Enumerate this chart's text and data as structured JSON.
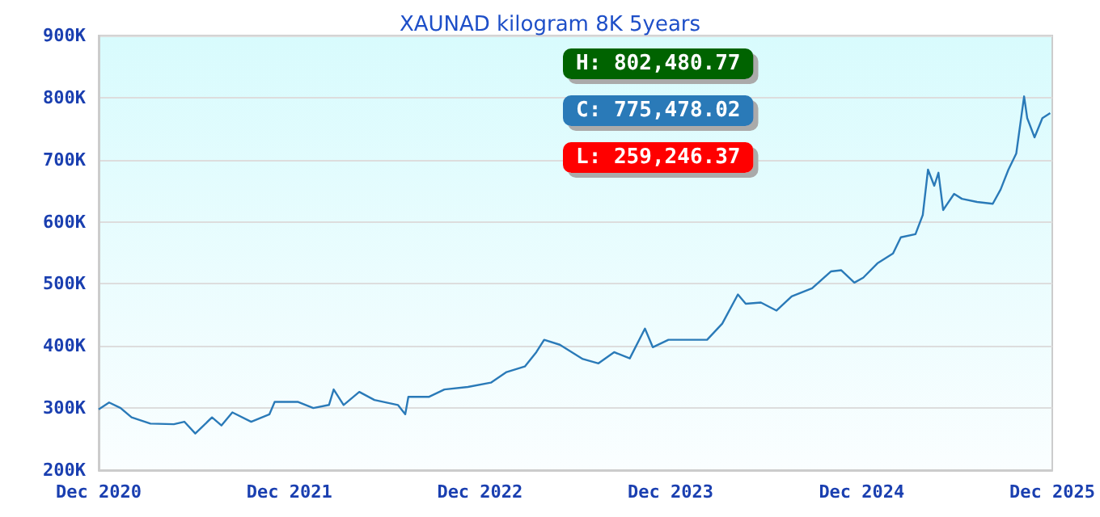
{
  "chart_data": {
    "type": "line",
    "title": "XAUNAD kilogram 8K 5years",
    "x": [
      "2020-12-01",
      "2020-12-21",
      "2021-01-12",
      "2021-02-02",
      "2021-03-10",
      "2021-04-24",
      "2021-05-14",
      "2021-06-04",
      "2021-07-06",
      "2021-07-24",
      "2021-08-14",
      "2021-09-19",
      "2021-10-24",
      "2021-11-03",
      "2021-12-17",
      "2022-01-16",
      "2022-02-15",
      "2022-02-24",
      "2022-03-15",
      "2022-04-14",
      "2022-05-13",
      "2022-06-27",
      "2022-07-11",
      "2022-07-17",
      "2022-08-25",
      "2022-09-24",
      "2022-11-08",
      "2022-12-22",
      "2023-01-21",
      "2023-02-25",
      "2023-03-19",
      "2023-04-03",
      "2023-05-03",
      "2023-06-16",
      "2023-07-16",
      "2023-08-15",
      "2023-09-14",
      "2023-10-13",
      "2023-10-28",
      "2023-11-27",
      "2024-01-10",
      "2024-02-09",
      "2024-03-09",
      "2024-04-08",
      "2024-04-23",
      "2024-05-22",
      "2024-06-21",
      "2024-07-20",
      "2024-08-28",
      "2024-10-03",
      "2024-10-23",
      "2024-11-17",
      "2024-12-04",
      "2024-12-31",
      "2025-01-30",
      "2025-02-14",
      "2025-03-14",
      "2025-03-28",
      "2025-04-07",
      "2025-04-19",
      "2025-04-27",
      "2025-05-06",
      "2025-05-27",
      "2025-06-11",
      "2025-07-10",
      "2025-08-09",
      "2025-08-24",
      "2025-09-08",
      "2025-09-23",
      "2025-10-08",
      "2025-10-14",
      "2025-10-28",
      "2025-11-12",
      "2025-11-27"
    ],
    "series": [
      {
        "color": "#2a7ab8",
        "values": [
          298000,
          309000,
          300000,
          285000,
          275000,
          274000,
          278000,
          259000,
          285000,
          272000,
          293000,
          278000,
          290000,
          310000,
          310000,
          300000,
          305000,
          330000,
          305000,
          326000,
          313000,
          305000,
          290000,
          318000,
          318000,
          330000,
          334000,
          341000,
          358000,
          367000,
          390000,
          410000,
          402000,
          379000,
          372000,
          390000,
          380000,
          428000,
          398000,
          410000,
          410000,
          410000,
          436000,
          483000,
          468000,
          470000,
          457000,
          480000,
          493000,
          520000,
          522000,
          502000,
          510000,
          533000,
          549000,
          575000,
          580000,
          611000,
          684000,
          658000,
          679000,
          619000,
          645000,
          637000,
          632000,
          629000,
          652000,
          684000,
          710000,
          802000,
          767000,
          736000,
          767000,
          775000
        ]
      }
    ],
    "xlim": [
      "2020-12-01",
      "2025-12-01"
    ],
    "xticks": [
      {
        "value": "2020-12-01",
        "label": "Dec 2020"
      },
      {
        "value": "2021-12-01",
        "label": "Dec 2021"
      },
      {
        "value": "2022-12-01",
        "label": "Dec 2022"
      },
      {
        "value": "2023-12-01",
        "label": "Dec 2023"
      },
      {
        "value": "2024-12-01",
        "label": "Dec 2024"
      },
      {
        "value": "2025-12-01",
        "label": "Dec 2025"
      }
    ],
    "ylim": [
      200000,
      900000
    ],
    "yticks": [
      {
        "value": 200000,
        "label": "200K"
      },
      {
        "value": 300000,
        "label": "300K"
      },
      {
        "value": 400000,
        "label": "400K"
      },
      {
        "value": 500000,
        "label": "500K"
      },
      {
        "value": 600000,
        "label": "600K"
      },
      {
        "value": 700000,
        "label": "700K"
      },
      {
        "value": 800000,
        "label": "800K"
      },
      {
        "value": 900000,
        "label": "900K"
      }
    ],
    "annotations": [
      "H: 802,480.77",
      "C: 775,478.02",
      "L: 259,246.37"
    ],
    "grid": "y",
    "marker": "none",
    "line_style": "solid"
  }
}
